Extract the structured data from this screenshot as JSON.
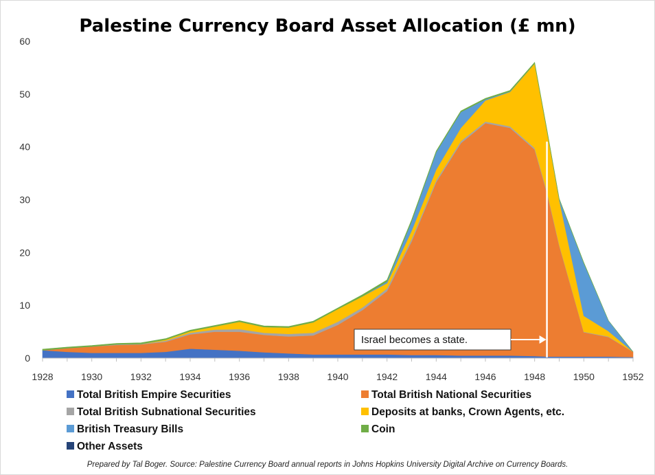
{
  "chart_data": {
    "type": "area",
    "stacked": true,
    "title": "Palestine Currency Board Asset Allocation (£ mn)",
    "x": [
      1928,
      1929,
      1930,
      1931,
      1932,
      1933,
      1934,
      1935,
      1936,
      1937,
      1938,
      1939,
      1940,
      1941,
      1942,
      1943,
      1944,
      1945,
      1946,
      1947,
      1948,
      1948.5,
      1949,
      1950,
      1951,
      1952
    ],
    "ylim": [
      0,
      60
    ],
    "xlim": [
      1928,
      1952
    ],
    "xticks": [
      "1928",
      "1930",
      "1932",
      "1934",
      "1936",
      "1938",
      "1940",
      "1942",
      "1944",
      "1946",
      "1948",
      "1950",
      "1952"
    ],
    "yticks": [
      "0",
      "10",
      "20",
      "30",
      "40",
      "50",
      "60"
    ],
    "series": [
      {
        "name": "Total British Empire Securities",
        "color": "#4472C4",
        "values": [
          1.5,
          1.2,
          1.0,
          1.0,
          1.0,
          1.2,
          1.8,
          1.6,
          1.4,
          1.1,
          0.9,
          0.7,
          0.7,
          0.7,
          0.7,
          0.6,
          0.6,
          0.5,
          0.5,
          0.5,
          0.4,
          0.3,
          0.3,
          0.3,
          0.3,
          0.2
        ]
      },
      {
        "name": "Total British National Securities",
        "color": "#ED7D31",
        "values": [
          0.0,
          0.7,
          1.2,
          1.5,
          1.6,
          1.9,
          2.7,
          3.4,
          3.6,
          3.3,
          3.2,
          3.6,
          5.6,
          8.4,
          12.0,
          21.5,
          32.7,
          40.2,
          44.0,
          43.1,
          39.1,
          31.0,
          21.0,
          4.6,
          3.7,
          1.0
        ]
      },
      {
        "name": "Total British Subnational Securities",
        "color": "#A5A5A5",
        "values": [
          0.0,
          0.0,
          0.0,
          0.1,
          0.1,
          0.2,
          0.3,
          0.4,
          0.5,
          0.4,
          0.5,
          0.5,
          0.6,
          0.5,
          0.5,
          0.5,
          0.4,
          0.4,
          0.3,
          0.3,
          0.3,
          0.3,
          0.2,
          0.1,
          0.1,
          0.0
        ]
      },
      {
        "name": "Deposits at banks, Crown Agents, etc.",
        "color": "#FFC000",
        "values": [
          0.0,
          0.0,
          0.0,
          0.0,
          0.0,
          0.2,
          0.3,
          0.6,
          1.4,
          1.1,
          1.2,
          2.0,
          2.4,
          2.1,
          1.0,
          1.5,
          2.0,
          2.5,
          4.0,
          6.5,
          16.0,
          11.5,
          8.5,
          3.0,
          1.0,
          0.0
        ]
      },
      {
        "name": "British Treasury Bills",
        "color": "#5B9BD5",
        "values": [
          0.0,
          0.0,
          0.0,
          0.0,
          0.0,
          0.0,
          0.0,
          0.0,
          0.0,
          0.0,
          0.0,
          0.0,
          0.0,
          0.0,
          0.3,
          1.8,
          3.3,
          3.0,
          0.2,
          0.1,
          0.0,
          0.0,
          0.1,
          10.0,
          2.0,
          0.0
        ]
      },
      {
        "name": "Coin",
        "color": "#70AD47",
        "values": [
          0.2,
          0.2,
          0.2,
          0.2,
          0.2,
          0.2,
          0.2,
          0.2,
          0.2,
          0.2,
          0.2,
          0.2,
          0.2,
          0.3,
          0.3,
          0.3,
          0.2,
          0.2,
          0.2,
          0.2,
          0.2,
          0.2,
          0.1,
          0.1,
          0.0,
          0.0
        ]
      },
      {
        "name": "Other Assets",
        "color": "#264478",
        "values": [
          0,
          0,
          0,
          0,
          0,
          0,
          0,
          0,
          0,
          0,
          0,
          0,
          0,
          0,
          0,
          0,
          0,
          0,
          0,
          0,
          0,
          0,
          0,
          0,
          0,
          0
        ]
      }
    ],
    "annotation": {
      "text": "Israel becomes a state.",
      "x": 1948.5
    },
    "legend": "bottom",
    "grid": false
  },
  "footer": "Prepared by Tal Boger. Source: Palestine Currency Board annual reports in Johns Hopkins University Digital Archive on Currency Boards."
}
